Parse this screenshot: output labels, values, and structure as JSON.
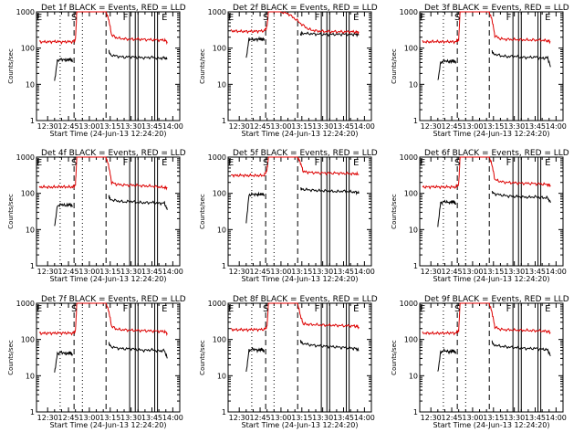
{
  "colors": {
    "events": "#000000",
    "lld": "#dd0000",
    "axis": "#000000"
  },
  "common": {
    "x_ticks": [
      "12:30",
      "12:45",
      "13:00",
      "13:15",
      "13:30",
      "13:45",
      "14:00"
    ],
    "x_tick_minutes": [
      750,
      765,
      780,
      795,
      810,
      825,
      840
    ],
    "xlim_minutes": [
      742,
      845
    ],
    "x_label": "Start Time (24-Jun-13 12:24:20)",
    "y_label": "Counts/sec",
    "y_ticks": [
      "1",
      "10",
      "100",
      "1000"
    ],
    "ylim": [
      1,
      1000
    ],
    "y_scale": "log",
    "markers": {
      "S": 769,
      "F": 806,
      "E1": 744,
      "E2": 834
    },
    "vlines_dotted": [
      759,
      775
    ],
    "vlines_dashed": [
      769,
      792
    ],
    "vlines_solid": [
      809,
      813,
      815,
      827,
      829
    ]
  },
  "chart_data": [
    {
      "type": "line",
      "title": "Det 1f BLACK = Events, RED = LLD",
      "markers": [
        "E",
        "S",
        "F",
        "E"
      ],
      "series": [
        {
          "name": "Events",
          "color": "black",
          "x": [
            755,
            757,
            760,
            763,
            765,
            766,
            767,
            768
          ],
          "values": [
            12,
            45,
            50,
            46,
            48,
            50,
            47,
            44
          ],
          "x2": [
            794,
            795,
            800,
            805,
            810,
            815,
            820,
            825,
            830,
            834,
            836
          ],
          "values2": [
            85,
            65,
            60,
            56,
            58,
            55,
            54,
            56,
            52,
            54,
            50
          ]
        },
        {
          "name": "LLD",
          "color": "red",
          "x": [
            744,
            748,
            752,
            756,
            760,
            764,
            768,
            770,
            771,
            772,
            792,
            794,
            796,
            800,
            805,
            810,
            815,
            820,
            825,
            830,
            834,
            836
          ],
          "values": [
            150,
            148,
            150,
            152,
            148,
            150,
            150,
            170,
            1000,
            1000,
            1000,
            600,
            230,
            190,
            180,
            175,
            178,
            172,
            170,
            168,
            166,
            150
          ]
        }
      ]
    },
    {
      "type": "line",
      "title": "Det 2f BLACK = Events, RED = LLD",
      "markers": [
        "E",
        "S",
        "F",
        "E"
      ],
      "series": [
        {
          "name": "Events",
          "color": "black",
          "x": [
            755,
            757,
            760,
            763,
            765,
            766,
            767,
            768
          ],
          "values": [
            50,
            180,
            170,
            175,
            180,
            178,
            176,
            175
          ],
          "x2": [
            794,
            795,
            800,
            805,
            810,
            815,
            820,
            825,
            830,
            834,
            836
          ],
          "values2": [
            230,
            260,
            250,
            245,
            240,
            238,
            240,
            242,
            240,
            238,
            240
          ]
        },
        {
          "name": "LLD",
          "color": "red",
          "x": [
            744,
            748,
            752,
            756,
            760,
            764,
            768,
            770,
            771,
            772,
            780,
            785,
            790,
            795,
            800,
            805,
            810,
            815,
            820,
            825,
            830,
            834,
            836
          ],
          "values": [
            300,
            295,
            290,
            290,
            290,
            295,
            300,
            400,
            1000,
            1000,
            1000,
            900,
            650,
            450,
            330,
            300,
            290,
            285,
            285,
            280,
            285,
            280,
            270
          ]
        }
      ]
    },
    {
      "type": "line",
      "title": "Det 3f BLACK = Events, RED = LLD",
      "markers": [
        "E",
        "S",
        "F",
        "E"
      ],
      "series": [
        {
          "name": "Events",
          "color": "black",
          "x": [
            755,
            757,
            760,
            763,
            765,
            766,
            767,
            768
          ],
          "values": [
            12,
            40,
            45,
            42,
            44,
            45,
            43,
            40
          ],
          "x2": [
            794,
            795,
            800,
            805,
            810,
            815,
            820,
            825,
            830,
            834,
            836
          ],
          "values2": [
            80,
            70,
            62,
            58,
            60,
            56,
            55,
            57,
            52,
            55,
            30
          ]
        },
        {
          "name": "LLD",
          "color": "red",
          "x": [
            744,
            748,
            752,
            756,
            760,
            764,
            768,
            770,
            771,
            772,
            792,
            794,
            796,
            800,
            805,
            810,
            815,
            820,
            825,
            830,
            834,
            836
          ],
          "values": [
            150,
            148,
            152,
            150,
            150,
            150,
            150,
            170,
            1000,
            1000,
            1000,
            600,
            220,
            180,
            175,
            172,
            170,
            168,
            168,
            165,
            160,
            150
          ]
        }
      ]
    },
    {
      "type": "line",
      "title": "Det 4f BLACK = Events, RED = LLD",
      "markers": [
        "E",
        "S",
        "F",
        "E"
      ],
      "series": [
        {
          "name": "Events",
          "color": "black",
          "x": [
            755,
            757,
            760,
            763,
            765,
            766,
            767,
            768
          ],
          "values": [
            12,
            45,
            50,
            46,
            48,
            50,
            47,
            44
          ],
          "x2": [
            794,
            795,
            800,
            805,
            810,
            815,
            820,
            825,
            830,
            834,
            836
          ],
          "values2": [
            85,
            68,
            62,
            58,
            60,
            56,
            55,
            56,
            53,
            54,
            35
          ]
        },
        {
          "name": "LLD",
          "color": "red",
          "x": [
            744,
            748,
            752,
            756,
            760,
            764,
            768,
            770,
            771,
            772,
            792,
            794,
            796,
            800,
            805,
            810,
            815,
            820,
            825,
            830,
            834,
            836
          ],
          "values": [
            150,
            150,
            148,
            150,
            152,
            150,
            150,
            170,
            1000,
            1000,
            1000,
            550,
            200,
            175,
            170,
            168,
            165,
            160,
            158,
            150,
            145,
            140
          ]
        }
      ]
    },
    {
      "type": "line",
      "title": "Det 5f BLACK = Events, RED = LLD",
      "markers": [
        "E",
        "S",
        "F",
        "E"
      ],
      "series": [
        {
          "name": "Events",
          "color": "black",
          "x": [
            755,
            757,
            760,
            763,
            765,
            766,
            767,
            768
          ],
          "values": [
            15,
            90,
            95,
            92,
            94,
            95,
            93,
            90
          ],
          "x2": [
            794,
            795,
            800,
            805,
            810,
            815,
            820,
            825,
            830,
            834,
            836
          ],
          "values2": [
            140,
            130,
            125,
            120,
            118,
            115,
            112,
            115,
            110,
            108,
            100
          ]
        },
        {
          "name": "LLD",
          "color": "red",
          "x": [
            744,
            748,
            752,
            756,
            760,
            764,
            768,
            770,
            771,
            772,
            792,
            794,
            796,
            800,
            805,
            810,
            815,
            820,
            825,
            830,
            834,
            836
          ],
          "values": [
            320,
            310,
            315,
            310,
            312,
            310,
            315,
            450,
            1000,
            1000,
            1000,
            700,
            400,
            380,
            370,
            365,
            360,
            362,
            355,
            350,
            345,
            330
          ]
        }
      ]
    },
    {
      "type": "line",
      "title": "Det 6f BLACK = Events, RED = LLD",
      "markers": [
        "E",
        "S",
        "F",
        "E"
      ],
      "series": [
        {
          "name": "Events",
          "color": "black",
          "x": [
            755,
            757,
            760,
            763,
            765,
            766,
            767,
            768
          ],
          "values": [
            12,
            55,
            60,
            55,
            58,
            60,
            56,
            52
          ],
          "x2": [
            794,
            795,
            800,
            805,
            810,
            815,
            820,
            825,
            830,
            834,
            836
          ],
          "values2": [
            110,
            100,
            90,
            85,
            82,
            80,
            78,
            80,
            76,
            75,
            55
          ]
        },
        {
          "name": "LLD",
          "color": "red",
          "x": [
            744,
            748,
            752,
            756,
            760,
            764,
            768,
            770,
            771,
            772,
            792,
            794,
            796,
            800,
            805,
            810,
            815,
            820,
            825,
            830,
            834,
            836
          ],
          "values": [
            150,
            150,
            152,
            150,
            150,
            150,
            150,
            180,
            1000,
            1000,
            1000,
            600,
            240,
            210,
            200,
            195,
            190,
            188,
            185,
            180,
            175,
            165
          ]
        }
      ]
    },
    {
      "type": "line",
      "title": "Det 7f BLACK = Events, RED = LLD",
      "markers": [
        "E",
        "S",
        "F",
        "E"
      ],
      "series": [
        {
          "name": "Events",
          "color": "black",
          "x": [
            755,
            757,
            760,
            763,
            765,
            766,
            767,
            768
          ],
          "values": [
            12,
            40,
            45,
            40,
            42,
            44,
            41,
            38
          ],
          "x2": [
            794,
            795,
            800,
            805,
            810,
            815,
            820,
            825,
            830,
            834,
            836
          ],
          "values2": [
            80,
            65,
            58,
            55,
            56,
            52,
            50,
            52,
            48,
            50,
            30
          ]
        },
        {
          "name": "LLD",
          "color": "red",
          "x": [
            744,
            748,
            752,
            756,
            760,
            764,
            768,
            770,
            771,
            772,
            792,
            794,
            796,
            800,
            805,
            810,
            815,
            820,
            825,
            830,
            834,
            836
          ],
          "values": [
            150,
            148,
            150,
            150,
            152,
            150,
            150,
            170,
            1000,
            1000,
            1000,
            600,
            230,
            190,
            185,
            180,
            178,
            175,
            172,
            170,
            165,
            150
          ]
        }
      ]
    },
    {
      "type": "line",
      "title": "Det 8f BLACK = Events, RED = LLD",
      "markers": [
        "E",
        "S",
        "F",
        "E"
      ],
      "series": [
        {
          "name": "Events",
          "color": "black",
          "x": [
            755,
            757,
            760,
            763,
            765,
            766,
            767,
            768
          ],
          "values": [
            12,
            50,
            55,
            50,
            52,
            55,
            51,
            48
          ],
          "x2": [
            794,
            795,
            800,
            805,
            810,
            815,
            820,
            825,
            830,
            834,
            836
          ],
          "values2": [
            90,
            80,
            72,
            68,
            66,
            64,
            62,
            60,
            58,
            56,
            50
          ]
        },
        {
          "name": "LLD",
          "color": "red",
          "x": [
            744,
            748,
            752,
            756,
            760,
            764,
            768,
            770,
            771,
            772,
            792,
            794,
            796,
            800,
            805,
            810,
            815,
            820,
            825,
            830,
            834,
            836
          ],
          "values": [
            190,
            185,
            188,
            185,
            190,
            188,
            190,
            230,
            1000,
            1000,
            1000,
            450,
            270,
            260,
            255,
            250,
            248,
            245,
            240,
            238,
            235,
            220
          ]
        }
      ]
    },
    {
      "type": "line",
      "title": "Det 9f BLACK = Events, RED = LLD",
      "markers": [
        "E",
        "S",
        "F",
        "E"
      ],
      "series": [
        {
          "name": "Events",
          "color": "black",
          "x": [
            755,
            757,
            760,
            763,
            765,
            766,
            767,
            768
          ],
          "values": [
            12,
            45,
            50,
            45,
            48,
            50,
            46,
            42
          ],
          "x2": [
            794,
            795,
            800,
            805,
            810,
            815,
            820,
            825,
            830,
            834,
            836
          ],
          "values2": [
            85,
            72,
            65,
            62,
            60,
            58,
            56,
            57,
            54,
            52,
            35
          ]
        },
        {
          "name": "LLD",
          "color": "red",
          "x": [
            744,
            748,
            752,
            756,
            760,
            764,
            768,
            770,
            771,
            772,
            792,
            794,
            796,
            800,
            805,
            810,
            815,
            820,
            825,
            830,
            834,
            836
          ],
          "values": [
            150,
            150,
            148,
            150,
            150,
            152,
            150,
            175,
            1000,
            1000,
            1000,
            550,
            220,
            190,
            185,
            182,
            180,
            178,
            175,
            172,
            168,
            155
          ]
        }
      ]
    }
  ]
}
